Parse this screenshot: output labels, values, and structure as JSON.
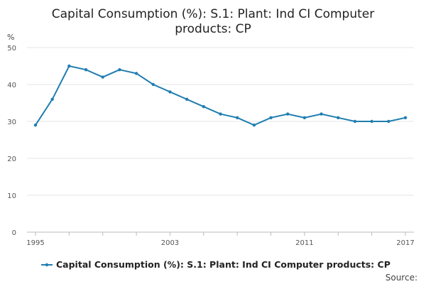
{
  "chart_data": {
    "type": "line",
    "title_lines": [
      "Capital Consumption (%): S.1: Plant: Ind CI Computer",
      "products: CP"
    ],
    "ylabel_unit": "%",
    "x": [
      1995,
      1996,
      1997,
      1998,
      1999,
      2000,
      2001,
      2002,
      2003,
      2004,
      2005,
      2006,
      2007,
      2008,
      2009,
      2010,
      2011,
      2012,
      2013,
      2014,
      2015,
      2016,
      2017
    ],
    "x_tick_labels": [
      "1995",
      "2003",
      "2011",
      "2017"
    ],
    "x_tick_label_values": [
      1995,
      2003,
      2011,
      2017
    ],
    "y_ticks": [
      0,
      10,
      20,
      30,
      40,
      50
    ],
    "ylim": [
      0,
      50
    ],
    "series": [
      {
        "name": "Capital Consumption (%): S.1: Plant: Ind CI Computer products: CP",
        "color": "#1f7eb0",
        "values": [
          29,
          36,
          45,
          44,
          42,
          44,
          43,
          40,
          38,
          36,
          34,
          32,
          31,
          29,
          31,
          32,
          31,
          32,
          31,
          30,
          30,
          30,
          31
        ]
      }
    ],
    "legend_position": "bottom-left",
    "grid": true
  },
  "source_label": "Source:"
}
